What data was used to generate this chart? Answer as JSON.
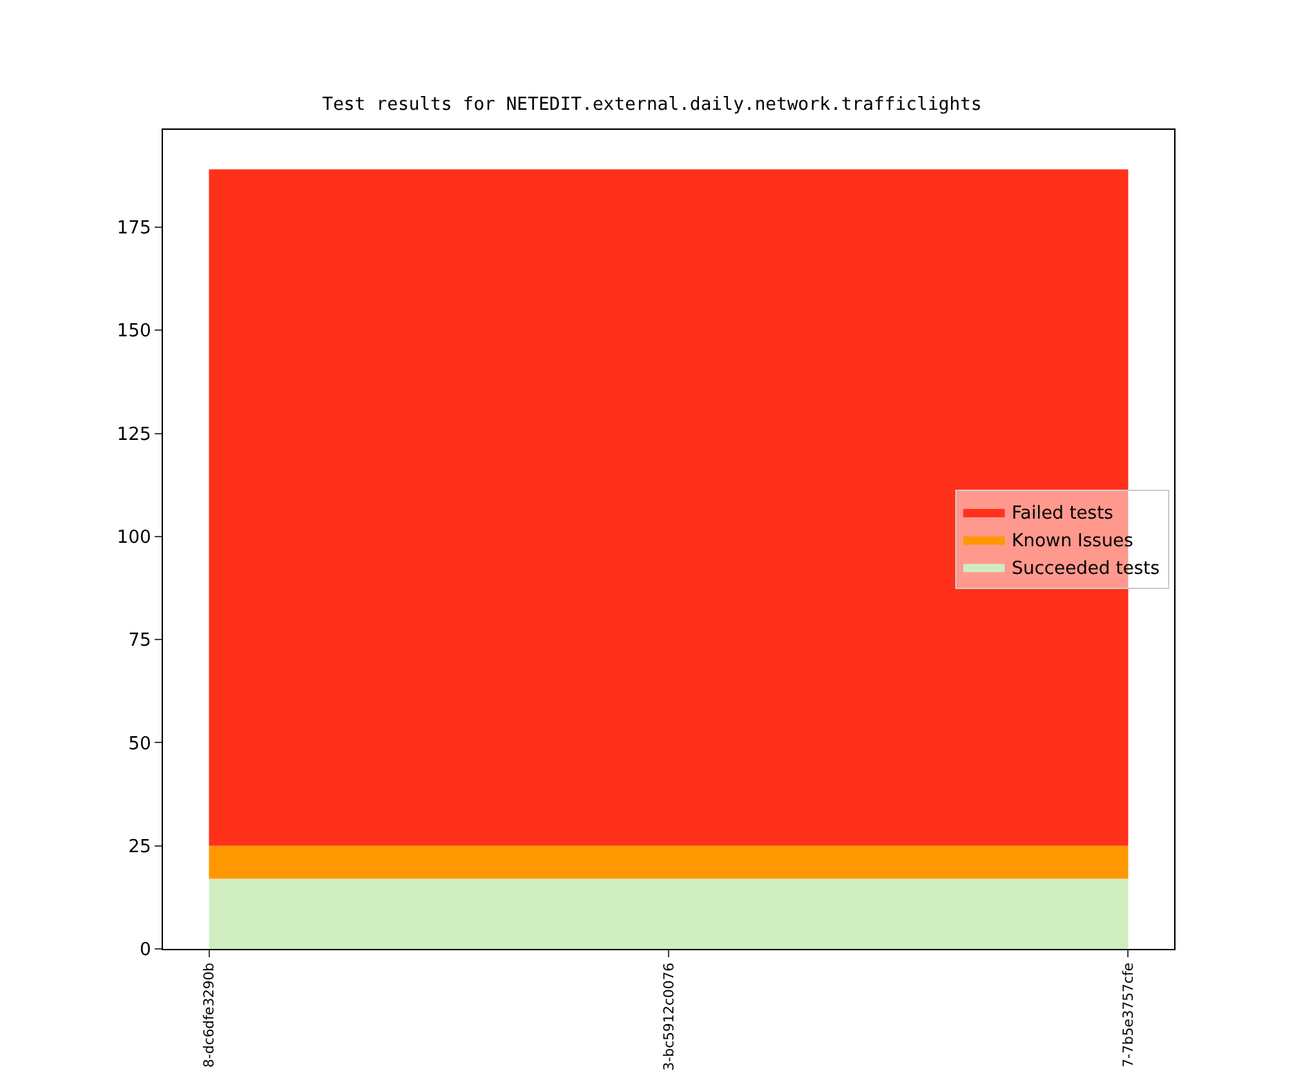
{
  "chart_data": {
    "type": "area",
    "stacked": true,
    "title": "Test results for NETEDIT.external.daily.network.trafficlights",
    "categories": [
      "8-dc6dfe3290b",
      "3-bc5912c0076",
      "7-7b5e3757cfe"
    ],
    "series": [
      {
        "name": "Succeeded tests",
        "color": "#d0edc0",
        "values": [
          17,
          17,
          17
        ]
      },
      {
        "name": "Known Issues",
        "color": "#ff9800",
        "values": [
          8,
          8,
          8
        ]
      },
      {
        "name": "Failed tests",
        "color": "#ff311b",
        "values": [
          164,
          164,
          164
        ]
      }
    ],
    "ylim": [
      0,
      198.6
    ],
    "yticks": [
      0,
      25,
      50,
      75,
      100,
      125,
      150,
      175
    ],
    "legend": "right"
  }
}
